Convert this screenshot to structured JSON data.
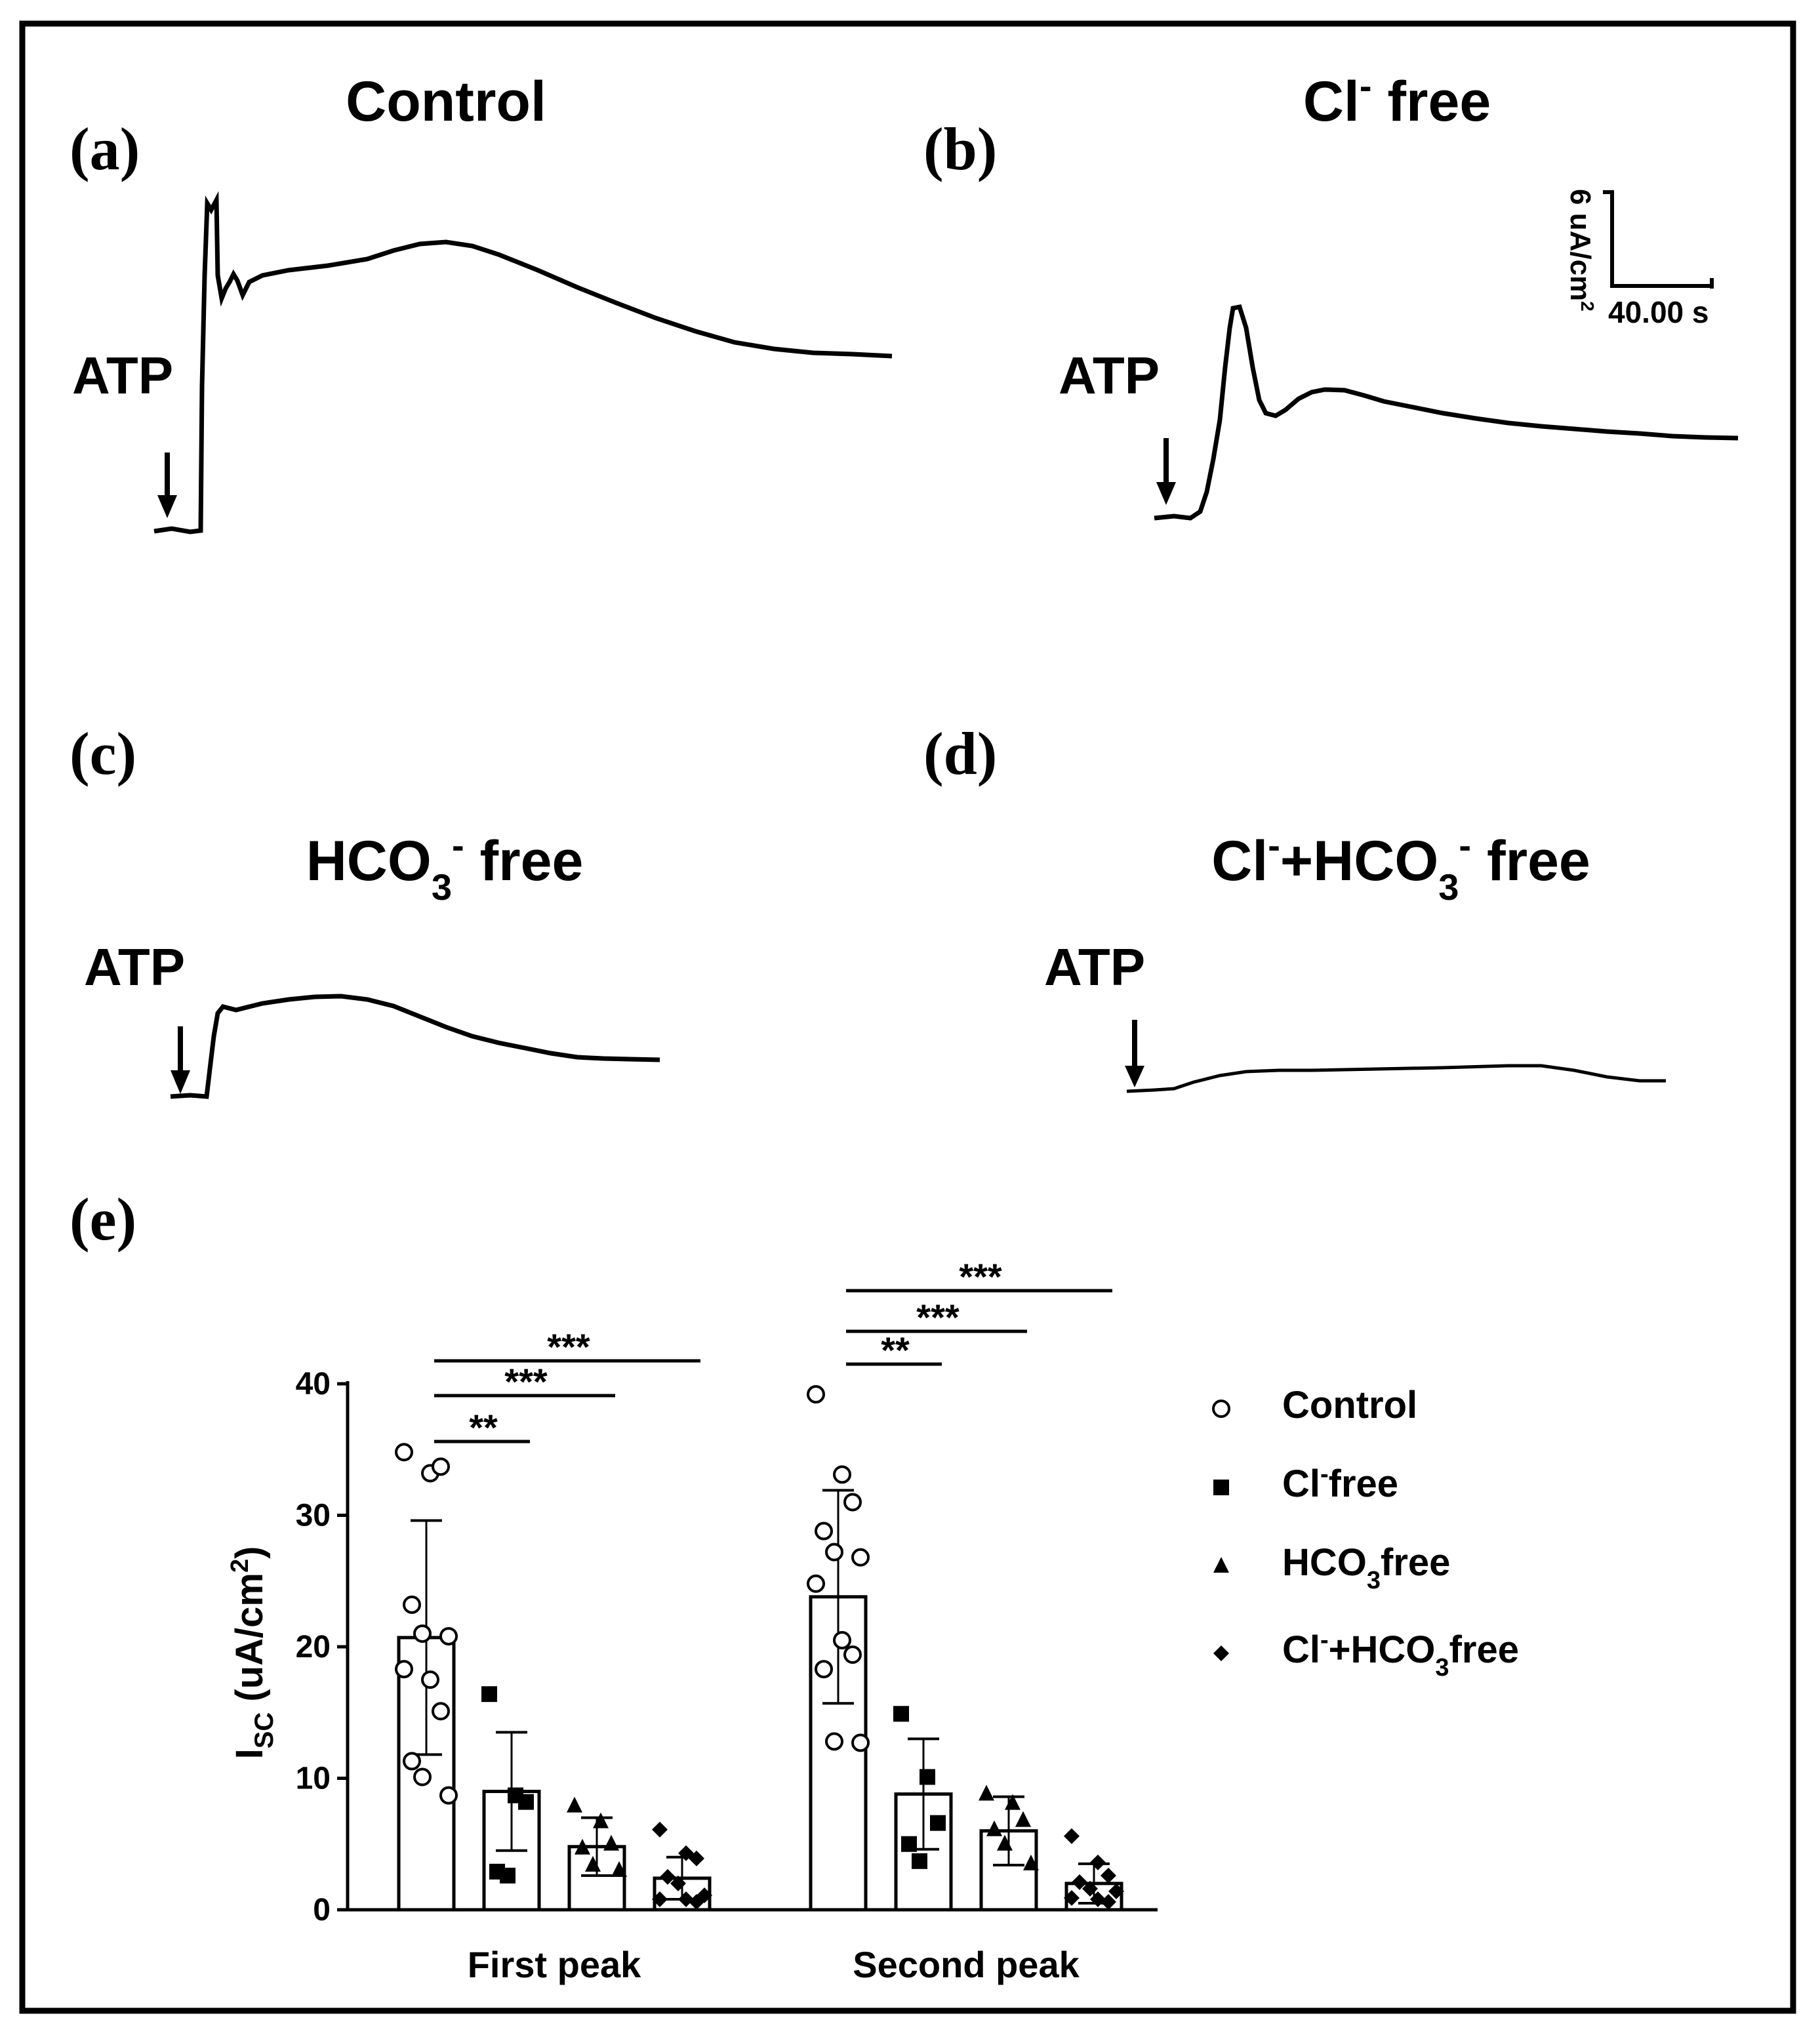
{
  "panels": {
    "a": {
      "letter": "(a)",
      "title": "Control",
      "stim": "ATP"
    },
    "b": {
      "letter": "(b)",
      "title_main": "Cl",
      "title_sup": "-",
      "title_rest": " free",
      "stim": "ATP"
    },
    "c": {
      "letter": "(c)",
      "title_main": "HCO",
      "title_sub": "3",
      "title_sup": "-",
      "title_rest": " free",
      "stim": "ATP"
    },
    "d": {
      "letter": "(d)",
      "title_main": "Cl",
      "title_sup1": "-",
      "title_mid": "+HCO",
      "title_sub": "3",
      "title_sup2": "-",
      "title_rest": " free",
      "stim": "ATP"
    },
    "e": {
      "letter": "(e)"
    }
  },
  "scale_bar": {
    "vertical": "6 uA/cm",
    "vertical_sup": "2",
    "horizontal": "40.00 s"
  },
  "colors": {
    "ink": "#000000",
    "background": "#ffffff"
  },
  "chart_data": [
    {
      "type": "bar",
      "categories": [
        "First peak",
        "Second peak"
      ],
      "ylabel": "I",
      "ylabel_sub": "SC",
      "ylabel_rest": " (uA/cm",
      "ylabel_sup": "2",
      "ylabel_end": ")",
      "ylim": [
        0,
        40
      ],
      "yticks": [
        0,
        10,
        20,
        30,
        40
      ],
      "legend_position": "right",
      "series": [
        {
          "name": "Control",
          "marker": "open-circle",
          "values": [
            20.7,
            23.8
          ],
          "sd": [
            8.9,
            8.1
          ],
          "points": [
            [
              34.8,
              33.2,
              33.7,
              23.2,
              21.0,
              20.8,
              18.3,
              17.5,
              15.1,
              11.3,
              10.1,
              8.7
            ],
            [
              39.2,
              33.1,
              31.0,
              28.8,
              27.2,
              26.8,
              24.8,
              20.5,
              19.4,
              18.3,
              12.8,
              12.7
            ]
          ]
        },
        {
          "name": "Cl-free",
          "label_main": "Cl",
          "label_sup": "-",
          "label_rest": "free",
          "marker": "filled-square",
          "values": [
            9.0,
            8.8
          ],
          "sd": [
            4.5,
            4.2
          ],
          "points": [
            [
              16.4,
              8.7,
              8.2,
              2.9,
              2.6
            ],
            [
              14.9,
              10.1,
              6.6,
              5.0,
              3.7
            ]
          ]
        },
        {
          "name": "HCO3-free",
          "label_main": "HCO",
          "label_sub": "3",
          "label_rest": "free",
          "marker": "filled-triangle",
          "values": [
            4.8,
            6.0
          ],
          "sd": [
            2.2,
            2.6
          ],
          "points": [
            [
              7.9,
              6.7,
              5.0,
              4.7,
              3.4,
              3.0
            ],
            [
              8.8,
              8.1,
              6.8,
              6.1,
              5.0,
              3.5
            ]
          ]
        },
        {
          "name": "Cl-+HCO3-free",
          "label_main": "Cl",
          "label_sup1": "-",
          "label_mid": "+HCO",
          "label_sub": "3",
          "label_rest": "free",
          "marker": "filled-diamond",
          "values": [
            2.4,
            2.0
          ],
          "sd": [
            1.6,
            1.5
          ],
          "points": [
            [
              6.1,
              4.3,
              3.9,
              2.5,
              2.0,
              1.1,
              0.8,
              0.8,
              0.6
            ],
            [
              5.6,
              3.6,
              2.6,
              2.1,
              1.6,
              1.4,
              0.9,
              0.8,
              0.6
            ]
          ]
        }
      ],
      "significance": [
        {
          "group": "First peak",
          "from": "Control",
          "to": "Cl-free",
          "label": "**"
        },
        {
          "group": "First peak",
          "from": "Control",
          "to": "HCO3-free",
          "label": "***"
        },
        {
          "group": "First peak",
          "from": "Control",
          "to": "Cl-+HCO3-free",
          "label": "***"
        },
        {
          "group": "Second peak",
          "from": "Control",
          "to": "Cl-free",
          "label": "**"
        },
        {
          "group": "Second peak",
          "from": "Control",
          "to": "HCO3-free",
          "label": "***"
        },
        {
          "group": "Second peak",
          "from": "Control",
          "to": "Cl-+HCO3-free",
          "label": "***"
        }
      ]
    }
  ]
}
